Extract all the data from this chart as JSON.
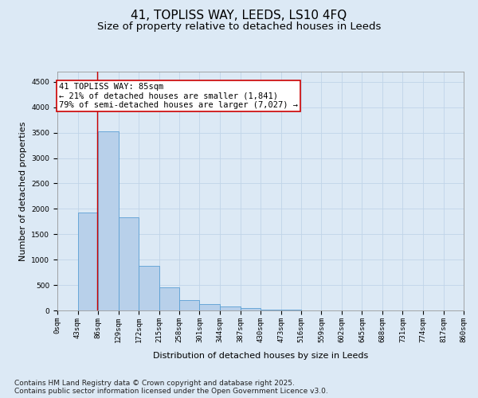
{
  "title_line1": "41, TOPLISS WAY, LEEDS, LS10 4FQ",
  "title_line2": "Size of property relative to detached houses in Leeds",
  "xlabel": "Distribution of detached houses by size in Leeds",
  "ylabel": "Number of detached properties",
  "bin_edges": [
    0,
    43,
    86,
    129,
    172,
    215,
    258,
    301,
    344,
    387,
    430,
    473,
    516,
    559,
    602,
    645,
    688,
    731,
    774,
    817,
    860
  ],
  "bin_labels": [
    "0sqm",
    "43sqm",
    "86sqm",
    "129sqm",
    "172sqm",
    "215sqm",
    "258sqm",
    "301sqm",
    "344sqm",
    "387sqm",
    "430sqm",
    "473sqm",
    "516sqm",
    "559sqm",
    "602sqm",
    "645sqm",
    "688sqm",
    "731sqm",
    "774sqm",
    "817sqm",
    "860sqm"
  ],
  "bar_heights": [
    0,
    1930,
    3530,
    1830,
    870,
    460,
    200,
    130,
    80,
    40,
    20,
    10,
    5,
    3,
    2,
    1,
    1,
    0,
    0,
    0
  ],
  "bar_color": "#b8d0ea",
  "bar_edge_color": "#5a9fd4",
  "property_sqm": 85,
  "property_label": "41 TOPLISS WAY: 85sqm",
  "annotation_line2": "← 21% of detached houses are smaller (1,841)",
  "annotation_line3": "79% of semi-detached houses are larger (7,027) →",
  "vline_color": "#cc0000",
  "annotation_box_edge_color": "#cc0000",
  "annotation_box_face_color": "#ffffff",
  "grid_color": "#c0d4e8",
  "background_color": "#dce9f5",
  "ylim": [
    0,
    4700
  ],
  "yticks": [
    0,
    500,
    1000,
    1500,
    2000,
    2500,
    3000,
    3500,
    4000,
    4500
  ],
  "footer_line1": "Contains HM Land Registry data © Crown copyright and database right 2025.",
  "footer_line2": "Contains public sector information licensed under the Open Government Licence v3.0.",
  "title_fontsize": 11,
  "subtitle_fontsize": 9.5,
  "axis_label_fontsize": 8,
  "tick_fontsize": 6.5,
  "annotation_fontsize": 7.5,
  "footer_fontsize": 6.5,
  "ylabel_fontsize": 8
}
